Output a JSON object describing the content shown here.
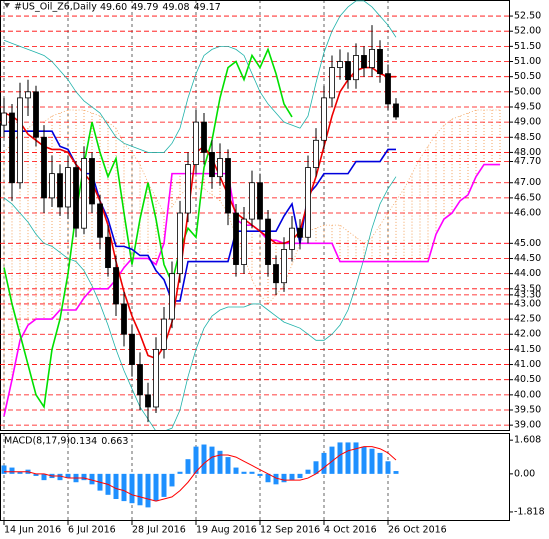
{
  "chart_data": [
    {
      "type": "candlestick",
      "title": "#US_Oil_Z6,Daily",
      "ohlc_labels": [
        "49.60",
        "49.79",
        "49.08",
        "49.17"
      ],
      "candles": [
        [
          48.9,
          49.8,
          48.5,
          49.3
        ],
        [
          49.3,
          49.6,
          46.4,
          47.0
        ],
        [
          47.0,
          50.3,
          46.8,
          49.8
        ],
        [
          49.8,
          50.4,
          49.2,
          50.0
        ],
        [
          50.0,
          50.2,
          48.2,
          48.5
        ],
        [
          48.5,
          48.9,
          46.0,
          46.5
        ],
        [
          46.5,
          47.9,
          46.2,
          47.3
        ],
        [
          47.3,
          47.6,
          45.9,
          46.2
        ],
        [
          46.2,
          47.9,
          45.8,
          47.5
        ],
        [
          47.5,
          47.7,
          45.2,
          45.5
        ],
        [
          45.5,
          48.2,
          45.3,
          47.8
        ],
        [
          47.8,
          48.0,
          46.0,
          46.3
        ],
        [
          46.3,
          46.6,
          44.8,
          45.2
        ],
        [
          45.2,
          45.6,
          43.9,
          44.2
        ],
        [
          44.2,
          44.6,
          42.6,
          43.0
        ],
        [
          43.0,
          43.4,
          41.6,
          42.0
        ],
        [
          42.0,
          42.3,
          40.6,
          41.0
        ],
        [
          41.0,
          41.4,
          39.5,
          40.0
        ],
        [
          40.0,
          40.4,
          39.1,
          39.6
        ],
        [
          39.6,
          41.9,
          39.4,
          41.5
        ],
        [
          41.5,
          42.9,
          41.2,
          42.5
        ],
        [
          42.5,
          44.4,
          42.2,
          44.0
        ],
        [
          44.0,
          46.4,
          43.7,
          46.0
        ],
        [
          46.0,
          48.0,
          45.7,
          47.6
        ],
        [
          47.6,
          49.4,
          47.3,
          49.0
        ],
        [
          49.0,
          49.3,
          47.6,
          48.0
        ],
        [
          48.0,
          48.4,
          46.8,
          47.2
        ],
        [
          47.2,
          48.3,
          46.9,
          47.8
        ],
        [
          47.8,
          48.1,
          45.6,
          46.0
        ],
        [
          46.0,
          46.3,
          43.9,
          44.3
        ],
        [
          44.3,
          46.2,
          44.0,
          45.8
        ],
        [
          45.8,
          47.4,
          45.5,
          47.0
        ],
        [
          47.0,
          47.3,
          45.4,
          45.8
        ],
        [
          45.8,
          46.1,
          43.9,
          44.3
        ],
        [
          44.3,
          44.6,
          43.3,
          43.7
        ],
        [
          43.7,
          45.2,
          43.4,
          44.8
        ],
        [
          44.8,
          45.9,
          44.4,
          45.5
        ],
        [
          45.5,
          45.8,
          44.8,
          45.2
        ],
        [
          45.2,
          47.9,
          45.0,
          47.5
        ],
        [
          47.5,
          48.8,
          47.2,
          48.4
        ],
        [
          48.4,
          50.2,
          48.1,
          49.8
        ],
        [
          49.8,
          51.2,
          49.5,
          50.8
        ],
        [
          50.8,
          51.4,
          50.4,
          51.0
        ],
        [
          51.0,
          51.3,
          50.1,
          50.4
        ],
        [
          50.4,
          51.6,
          50.1,
          51.2
        ],
        [
          51.2,
          51.5,
          50.5,
          50.8
        ],
        [
          50.8,
          52.2,
          50.5,
          51.4
        ],
        [
          51.4,
          51.7,
          50.3,
          50.6
        ],
        [
          50.6,
          50.9,
          49.4,
          49.6
        ],
        [
          49.6,
          49.79,
          49.08,
          49.17
        ]
      ],
      "series": [
        {
          "color": "#20b2aa",
          "values": [
            51.7,
            51.6,
            51.5,
            51.4,
            51.3,
            51.2,
            51.0,
            50.7,
            50.4,
            50.0,
            49.7,
            49.5,
            49.3,
            48.9,
            48.5,
            48.3,
            48.2,
            48.1,
            48.0,
            48.0,
            48.0,
            48.3,
            48.8,
            49.8,
            50.6,
            51.2,
            51.4,
            51.5,
            51.5,
            51.4,
            51.2,
            50.6,
            50.0,
            49.6,
            49.3,
            49.0,
            48.9,
            48.8,
            49.2,
            50.3,
            51.3,
            52.0,
            52.5,
            52.8,
            53.0,
            53.0,
            52.8,
            52.5,
            52.2,
            51.8,
            null,
            null,
            null,
            null,
            null,
            null,
            null,
            null,
            null,
            null,
            null,
            null,
            null
          ]
        },
        {
          "color": "#20b2aa",
          "values": [
            46.5,
            46.3,
            46.0,
            45.7,
            45.3,
            45.0,
            44.9,
            44.7,
            44.5,
            44.4,
            44.1,
            43.6,
            43.0,
            42.3,
            41.5,
            40.8,
            40.2,
            39.6,
            39.2,
            38.8,
            38.8,
            38.9,
            39.5,
            40.6,
            41.5,
            42.2,
            42.6,
            42.8,
            42.9,
            42.9,
            42.9,
            43.0,
            43.0,
            42.8,
            42.6,
            42.4,
            42.3,
            42.2,
            42.0,
            41.8,
            41.8,
            42.0,
            42.3,
            42.8,
            43.6,
            44.5,
            45.5,
            46.3,
            46.8,
            47.2,
            null,
            null,
            null,
            null,
            null,
            null,
            null,
            null,
            null,
            null,
            null,
            null,
            null
          ]
        },
        {
          "color": "#ff00ff",
          "values": [
            39.3,
            40.5,
            41.8,
            42.3,
            42.5,
            42.5,
            42.5,
            42.8,
            42.8,
            42.8,
            43.2,
            43.5,
            43.5,
            43.5,
            43.8,
            44.2,
            44.5,
            44.5,
            44.5,
            44.3,
            45.0,
            47.3,
            47.3,
            47.3,
            47.3,
            47.3,
            47.3,
            47.3,
            47.3,
            45.8,
            45.6,
            45.6,
            45.4,
            45.1,
            45.1,
            45.0,
            45.0,
            45.0,
            45.0,
            45.0,
            45.0,
            45.0,
            44.4,
            44.4,
            44.4,
            44.4,
            44.4,
            44.4,
            44.4,
            44.4,
            44.4,
            44.4,
            44.4,
            44.4,
            45.3,
            45.8,
            46.0,
            46.4,
            46.6,
            47.2,
            47.6,
            47.6,
            47.6
          ]
        },
        {
          "color": "#00e000",
          "values": [
            44.2,
            43.0,
            42.0,
            41.0,
            40.0,
            39.6,
            41.5,
            42.5,
            44.0,
            46.0,
            47.6,
            49.0,
            48.0,
            47.2,
            47.8,
            46.0,
            44.3,
            45.8,
            47.0,
            45.8,
            44.3,
            43.7,
            44.8,
            45.5,
            45.2,
            47.5,
            48.4,
            49.8,
            50.8,
            51.0,
            50.4,
            51.2,
            50.8,
            51.4,
            50.6,
            49.6,
            49.17,
            null,
            null,
            null,
            null,
            null,
            null,
            null,
            null,
            null,
            null,
            null,
            null,
            null,
            null,
            null,
            null,
            null,
            null,
            null,
            null,
            null,
            null,
            null,
            null,
            null,
            null
          ]
        },
        {
          "color": "#0000dd",
          "values": [
            48.7,
            48.7,
            48.7,
            48.7,
            48.7,
            48.7,
            48.7,
            48.2,
            48.1,
            47.6,
            47.3,
            47.3,
            46.4,
            45.8,
            44.9,
            44.9,
            44.8,
            44.6,
            44.6,
            44.1,
            43.8,
            43.1,
            43.1,
            44.4,
            44.4,
            44.4,
            44.4,
            44.4,
            44.4,
            45.4,
            45.4,
            45.4,
            45.4,
            45.4,
            45.4,
            45.9,
            46.3,
            45.0,
            46.6,
            46.9,
            47.3,
            47.3,
            47.3,
            47.3,
            47.7,
            47.7,
            47.7,
            47.7,
            48.1,
            48.1,
            null,
            null,
            null,
            null,
            null,
            null,
            null,
            null,
            null,
            null,
            null,
            null,
            null
          ]
        },
        {
          "color": "#ee0000",
          "values": [
            49.3,
            49.2,
            49.0,
            48.6,
            48.4,
            48.2,
            48.1,
            48.1,
            48.0,
            47.6,
            47.3,
            47.0,
            46.4,
            45.6,
            44.4,
            43.4,
            42.6,
            42.0,
            41.3,
            41.2,
            41.6,
            42.4,
            44.0,
            46.0,
            48.0,
            48.2,
            47.8,
            47.2,
            46.6,
            46.0,
            45.8,
            45.6,
            45.4,
            45.2,
            45.0,
            45.0,
            45.1,
            45.4,
            46.4,
            47.2,
            48.2,
            49.2,
            50.0,
            50.4,
            50.7,
            50.8,
            50.8,
            50.6,
            50.5,
            50.5,
            null,
            null,
            null,
            null,
            null,
            null,
            null,
            null,
            null,
            null,
            null,
            null,
            null
          ]
        }
      ],
      "cloud": {
        "color": "#f4a460",
        "values": [
          48.0,
          48.3,
          48.6,
          48.8,
          49.0,
          49.0,
          49.2,
          49.3,
          49.4,
          49.4,
          49.4,
          49.3,
          49.2,
          49.0,
          48.8,
          48.3,
          48.0,
          47.6,
          47.0,
          46.5,
          46.0,
          46.2,
          46.6,
          46.8,
          46.8,
          46.8,
          46.6,
          46.4,
          46.0,
          45.2,
          44.6,
          43.8,
          43.3,
          43.0,
          43.3,
          43.6,
          44.3,
          45.0,
          45.4,
          45.5,
          45.6,
          45.6,
          45.6,
          45.4,
          45.2,
          45.0,
          45.2,
          45.6,
          46.0,
          46.4,
          46.8,
          47.3,
          47.8,
          48.2,
          48.6,
          48.9,
          49.1,
          49.2,
          49.3,
          49.4,
          49.4,
          49.4,
          49.4
        ]
      },
      "level_color": "#ff0000",
      "ylim": [
        38.84,
        53.03
      ],
      "yticks": [
        {
          "value": 52.5,
          "label": "52.50"
        },
        {
          "value": 52,
          "label": "52.00"
        },
        {
          "value": 51.5,
          "label": "51.50"
        },
        {
          "value": 51,
          "label": "51.00"
        },
        {
          "value": 50.5,
          "label": "50.50"
        },
        {
          "value": 50,
          "label": "50.00"
        },
        {
          "value": 49.5,
          "label": "49.50"
        },
        {
          "value": 49,
          "label": "49.00"
        },
        {
          "value": 48.5,
          "label": "48.50"
        },
        {
          "value": 48,
          "label": "48.00"
        },
        {
          "value": 47.7,
          "label": "47.70"
        },
        {
          "value": 47,
          "label": "47.00"
        },
        {
          "value": 46.5,
          "label": "46.50"
        },
        {
          "value": 46,
          "label": "46.00"
        },
        {
          "value": 45,
          "label": "45.00"
        },
        {
          "value": 44.5,
          "label": "44.50"
        },
        {
          "value": 44,
          "label": "44.00"
        },
        {
          "value": 43.5,
          "label": "43.50"
        },
        {
          "value": 43.3,
          "label": "43.30"
        },
        {
          "value": 43,
          "label": "43.00"
        },
        {
          "value": 42.5,
          "label": "42.50"
        },
        {
          "value": 42,
          "label": "42.00"
        },
        {
          "value": 41.5,
          "label": "41.50"
        },
        {
          "value": 41,
          "label": "41.00"
        },
        {
          "value": 40.5,
          "label": "40.50"
        },
        {
          "value": 40,
          "label": "40.00"
        },
        {
          "value": 39.5,
          "label": "39.50"
        },
        {
          "value": 39,
          "label": "39.00"
        }
      ],
      "xticks": [
        {
          "value": 0,
          "label": "14 Jun 2016"
        },
        {
          "value": 8,
          "label": "6 Jul 2016"
        },
        {
          "value": 16,
          "label": "28 Jul 2016"
        },
        {
          "value": 24,
          "label": "19 Aug 2016"
        },
        {
          "value": 32,
          "label": "12 Sep 2016"
        },
        {
          "value": 40,
          "label": "4 Oct 2016"
        },
        {
          "value": 48,
          "label": "26 Oct 2016"
        }
      ]
    },
    {
      "type": "macd",
      "title": "MACD(8,17,9)",
      "series": [
        {
          "color": "#1e90ff",
          "values": [
            0.4,
            0.3,
            0.1,
            0.2,
            -0.1,
            -0.3,
            -0.2,
            -0.3,
            -0.2,
            -0.4,
            -0.3,
            -0.5,
            -0.8,
            -1.0,
            -1.2,
            -1.3,
            -1.4,
            -1.5,
            -1.6,
            -1.3,
            -1.1,
            -0.6,
            0.1,
            0.7,
            1.3,
            1.4,
            1.3,
            1.1,
            0.8,
            0.3,
            0.1,
            0.1,
            -0.1,
            -0.4,
            -0.5,
            -0.4,
            -0.3,
            -0.2,
            0.2,
            0.6,
            1.0,
            1.3,
            1.5,
            1.5,
            1.5,
            1.3,
            1.2,
            1.0,
            0.6,
            0.134
          ]
        },
        {
          "color": "#ff0000",
          "values": [
            0.1,
            0.1,
            0.1,
            0.1,
            0.0,
            0.0,
            -0.1,
            -0.1,
            -0.2,
            -0.2,
            -0.2,
            -0.3,
            -0.4,
            -0.5,
            -0.7,
            -0.8,
            -1.0,
            -1.1,
            -1.2,
            -1.3,
            -1.2,
            -1.1,
            -0.8,
            -0.4,
            0.1,
            0.5,
            0.8,
            0.9,
            0.9,
            0.8,
            0.6,
            0.4,
            0.2,
            0.0,
            -0.2,
            -0.3,
            -0.3,
            -0.3,
            -0.2,
            0.0,
            0.3,
            0.6,
            0.9,
            1.1,
            1.2,
            1.3,
            1.3,
            1.2,
            1.0,
            0.663
          ]
        }
      ],
      "ylim": [
        -2.25,
        1.95
      ],
      "yticks": [
        1.608,
        {
          "value": 0,
          "label": "0.00"
        },
        -1.818
      ]
    }
  ]
}
